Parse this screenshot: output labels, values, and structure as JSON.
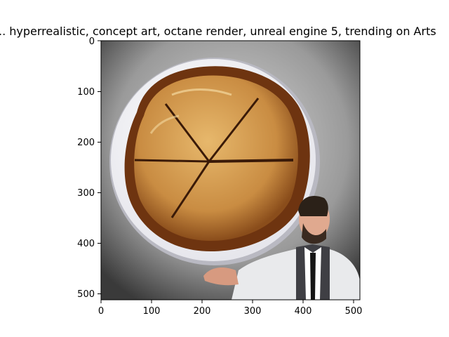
{
  "figure": {
    "title": "..  hyperrealistic, concept art, octane render, unreal engine 5, trending on Arts",
    "x_ticks": [
      "0",
      "100",
      "200",
      "300",
      "400",
      "500"
    ],
    "y_ticks": [
      "0",
      "100",
      "200",
      "300",
      "400",
      "500"
    ],
    "image_extent": [
      0,
      512,
      512,
      0
    ]
  },
  "image": {
    "subject": "pie-with-lattice-crust-on-plate",
    "figure": "chef-character"
  }
}
